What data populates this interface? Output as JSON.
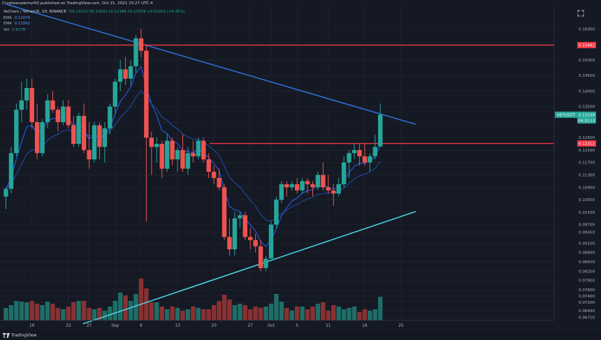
{
  "header": {
    "text": "CryptoacademyHQ published on TradingView.com, Oct 21, 2021 15:27 UTC-4"
  },
  "legend": {
    "symbol": "VeChain / TetherUS, 1D, BINANCE",
    "ohlc": "O0.12223  H0.13603  L0.12188  C0.13239  +0.01016 (+8.31%)",
    "ema1_label": "EMA",
    "ema1_value": "0.12074",
    "ema2_label": "EMA",
    "ema2_value": "0.11562",
    "vol_label": "Vol",
    "vol_value": "1.617B"
  },
  "footer": {
    "brand": "TradingView"
  },
  "colors": {
    "bg": "#151924",
    "up": "#26a69a",
    "down": "#ef5350",
    "vol_up": "#1f6e68",
    "vol_down": "#8a3133",
    "ema_fast": "#2962ff",
    "ema_slow": "#1e4fb0",
    "trend_down": "#2f6fd1",
    "trend_up": "#4dd0e1",
    "resistance": "#f23645"
  },
  "chart_data": {
    "type": "candlestick",
    "symbol": "VETUSDT",
    "last_price": "0.13239",
    "countdown": "04:32:13",
    "ylim": [
      0.0661,
      0.1671
    ],
    "y_ticks": [
      "0.16000",
      "0.15500",
      "0.15000",
      "0.14500",
      "0.14000",
      "0.13500",
      "0.13000",
      "0.12500",
      "0.12100",
      "0.11700",
      "0.11300",
      "0.10900",
      "0.10500",
      "0.10100",
      "0.09700",
      "0.09450",
      "0.09100",
      "0.08800",
      "0.08500",
      "0.08200",
      "0.07900",
      "0.07600",
      "0.07400",
      "0.07200",
      "0.06930",
      "0.06710"
    ],
    "y_tick_values": [
      0.16,
      0.155,
      0.15,
      0.145,
      0.14,
      0.135,
      0.13,
      0.125,
      0.121,
      0.117,
      0.113,
      0.109,
      0.105,
      0.101,
      0.097,
      0.0945,
      0.091,
      0.088,
      0.085,
      0.082,
      0.079,
      0.076,
      0.074,
      0.072,
      0.0693,
      0.0671
    ],
    "x_ticks": [
      {
        "label": "16",
        "index": 5
      },
      {
        "label": "23",
        "index": 12
      },
      {
        "label": "27",
        "index": 16
      },
      {
        "label": "Sep",
        "index": 21
      },
      {
        "label": "6",
        "index": 26
      },
      {
        "label": "13",
        "index": 33
      },
      {
        "label": "20",
        "index": 40
      },
      {
        "label": "27",
        "index": 47
      },
      {
        "label": "Oct",
        "index": 51
      },
      {
        "label": "5",
        "index": 56
      },
      {
        "label": "11",
        "index": 62
      },
      {
        "label": "18",
        "index": 69
      },
      {
        "label": "25",
        "index": 76
      }
    ],
    "candles": [
      [
        0.106,
        0.109,
        0.102,
        0.1085
      ],
      [
        0.1085,
        0.122,
        0.107,
        0.12
      ],
      [
        0.12,
        0.136,
        0.119,
        0.134
      ],
      [
        0.134,
        0.143,
        0.13,
        0.137
      ],
      [
        0.137,
        0.144,
        0.134,
        0.141
      ],
      [
        0.141,
        0.144,
        0.128,
        0.13
      ],
      [
        0.13,
        0.136,
        0.118,
        0.12
      ],
      [
        0.12,
        0.131,
        0.119,
        0.13
      ],
      [
        0.13,
        0.139,
        0.128,
        0.137
      ],
      [
        0.137,
        0.14,
        0.133,
        0.134
      ],
      [
        0.134,
        0.135,
        0.127,
        0.13
      ],
      [
        0.13,
        0.137,
        0.129,
        0.135
      ],
      [
        0.135,
        0.137,
        0.128,
        0.129
      ],
      [
        0.129,
        0.132,
        0.122,
        0.123
      ],
      [
        0.123,
        0.133,
        0.122,
        0.132
      ],
      [
        0.132,
        0.136,
        0.12,
        0.121
      ],
      [
        0.121,
        0.13,
        0.115,
        0.118
      ],
      [
        0.118,
        0.13,
        0.117,
        0.129
      ],
      [
        0.129,
        0.13,
        0.118,
        0.122
      ],
      [
        0.122,
        0.13,
        0.117,
        0.128
      ],
      [
        0.128,
        0.136,
        0.126,
        0.135
      ],
      [
        0.135,
        0.144,
        0.133,
        0.143
      ],
      [
        0.143,
        0.15,
        0.14,
        0.147
      ],
      [
        0.147,
        0.151,
        0.142,
        0.144
      ],
      [
        0.144,
        0.15,
        0.142,
        0.148
      ],
      [
        0.148,
        0.158,
        0.146,
        0.157
      ],
      [
        0.157,
        0.16,
        0.151,
        0.153
      ],
      [
        0.153,
        0.155,
        0.098,
        0.125
      ],
      [
        0.125,
        0.127,
        0.113,
        0.122
      ],
      [
        0.122,
        0.125,
        0.117,
        0.123
      ],
      [
        0.123,
        0.124,
        0.112,
        0.115
      ],
      [
        0.115,
        0.126,
        0.114,
        0.124
      ],
      [
        0.124,
        0.125,
        0.116,
        0.118
      ],
      [
        0.118,
        0.122,
        0.114,
        0.121
      ],
      [
        0.121,
        0.126,
        0.114,
        0.115
      ],
      [
        0.115,
        0.122,
        0.113,
        0.12
      ],
      [
        0.12,
        0.124,
        0.117,
        0.119
      ],
      [
        0.119,
        0.125,
        0.118,
        0.124
      ],
      [
        0.124,
        0.125,
        0.117,
        0.118
      ],
      [
        0.118,
        0.12,
        0.112,
        0.114
      ],
      [
        0.114,
        0.116,
        0.11,
        0.112
      ],
      [
        0.112,
        0.115,
        0.108,
        0.109
      ],
      [
        0.109,
        0.11,
        0.092,
        0.093
      ],
      [
        0.093,
        0.099,
        0.087,
        0.089
      ],
      [
        0.089,
        0.101,
        0.087,
        0.099
      ],
      [
        0.099,
        0.101,
        0.096,
        0.1
      ],
      [
        0.1,
        0.101,
        0.092,
        0.093
      ],
      [
        0.093,
        0.096,
        0.089,
        0.092
      ],
      [
        0.092,
        0.094,
        0.088,
        0.09
      ],
      [
        0.09,
        0.092,
        0.082,
        0.083
      ],
      [
        0.083,
        0.087,
        0.082,
        0.086
      ],
      [
        0.086,
        0.098,
        0.086,
        0.097
      ],
      [
        0.097,
        0.106,
        0.096,
        0.105
      ],
      [
        0.105,
        0.111,
        0.104,
        0.11
      ],
      [
        0.11,
        0.111,
        0.106,
        0.109
      ],
      [
        0.109,
        0.111,
        0.108,
        0.11
      ],
      [
        0.11,
        0.112,
        0.107,
        0.108
      ],
      [
        0.108,
        0.112,
        0.107,
        0.111
      ],
      [
        0.111,
        0.112,
        0.107,
        0.11
      ],
      [
        0.11,
        0.111,
        0.106,
        0.109
      ],
      [
        0.109,
        0.114,
        0.108,
        0.113
      ],
      [
        0.113,
        0.117,
        0.108,
        0.109
      ],
      [
        0.109,
        0.113,
        0.107,
        0.108
      ],
      [
        0.108,
        0.11,
        0.103,
        0.107
      ],
      [
        0.107,
        0.112,
        0.106,
        0.11
      ],
      [
        0.11,
        0.119,
        0.109,
        0.117
      ],
      [
        0.117,
        0.121,
        0.112,
        0.12
      ],
      [
        0.12,
        0.123,
        0.118,
        0.121
      ],
      [
        0.121,
        0.123,
        0.116,
        0.119
      ],
      [
        0.119,
        0.123,
        0.116,
        0.117
      ],
      [
        0.117,
        0.12,
        0.114,
        0.119
      ],
      [
        0.119,
        0.126,
        0.118,
        0.122
      ],
      [
        0.1222,
        0.136,
        0.1219,
        0.1324
      ]
    ],
    "volume_scale_max": 1.0,
    "volumes": [
      0.18,
      0.22,
      0.28,
      0.27,
      0.26,
      0.28,
      0.24,
      0.22,
      0.27,
      0.24,
      0.18,
      0.16,
      0.2,
      0.26,
      0.28,
      0.28,
      0.18,
      0.16,
      0.18,
      0.14,
      0.2,
      0.28,
      0.4,
      0.36,
      0.28,
      0.38,
      0.6,
      0.46,
      0.26,
      0.26,
      0.2,
      0.16,
      0.2,
      0.18,
      0.14,
      0.16,
      0.2,
      0.18,
      0.16,
      0.16,
      0.22,
      0.28,
      0.37,
      0.3,
      0.22,
      0.24,
      0.22,
      0.16,
      0.2,
      0.18,
      0.2,
      0.24,
      0.38,
      0.27,
      0.18,
      0.14,
      0.2,
      0.2,
      0.16,
      0.2,
      0.24,
      0.26,
      0.14,
      0.22,
      0.2,
      0.16,
      0.18,
      0.2,
      0.12,
      0.16,
      0.14,
      0.16,
      0.34
    ],
    "resistance_levels": [
      {
        "value": 0.15482,
        "label": "0.15482"
      },
      {
        "value": 0.12312,
        "label": "0.12312"
      }
    ],
    "trendlines": [
      {
        "name": "descending",
        "from": [
          0,
          0.168
        ],
        "to": [
          78.8,
          0.1293
        ]
      },
      {
        "name": "ascending",
        "from": [
          14.8,
          0.065
        ],
        "to": [
          78.8,
          0.1012
        ]
      }
    ]
  }
}
